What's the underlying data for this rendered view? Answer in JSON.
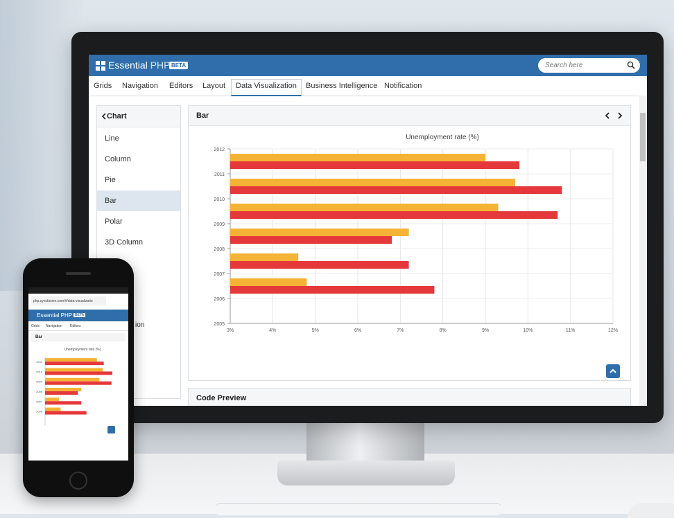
{
  "app": {
    "title_main": "Essential",
    "title_php": "PHP",
    "badge": "BETA"
  },
  "search": {
    "placeholder": "Search here"
  },
  "menu": {
    "items": [
      "Grids",
      "Navigation",
      "Editors",
      "Layout",
      "Data Visualization",
      "Business Intelligence",
      "Notification"
    ],
    "active": "Data Visualization"
  },
  "sidebar": {
    "header": "Chart",
    "items": [
      "Line",
      "Column",
      "Pie",
      "Bar",
      "Polar",
      "3D Column"
    ],
    "selected": "Bar",
    "peek_text": "ion"
  },
  "panel": {
    "title": "Bar",
    "code_preview_label": "Code Preview"
  },
  "colors": {
    "brand": "#2f6eab",
    "series_orange": "#f5b335",
    "series_red": "#e5383b"
  },
  "chart_data": {
    "type": "bar",
    "orientation": "horizontal",
    "title": "Unemployment rate (%)",
    "categories": [
      "2006",
      "2007",
      "2008",
      "2009",
      "2010",
      "2011"
    ],
    "y_ticks": [
      "2005",
      "2006",
      "2007",
      "2008",
      "2009",
      "2010",
      "2011",
      "2012"
    ],
    "x_ticks": [
      "3%",
      "4%",
      "5%",
      "6%",
      "7%",
      "8%",
      "9%",
      "10%",
      "11%",
      "12%"
    ],
    "xlim": [
      3,
      12
    ],
    "ylim": [
      2005,
      2012
    ],
    "grid": true,
    "series": [
      {
        "color": "#f5b335",
        "values": [
          4.8,
          4.6,
          7.2,
          9.3,
          9.7,
          9.0
        ]
      },
      {
        "color": "#e5383b",
        "values": [
          7.8,
          7.2,
          6.8,
          10.7,
          10.8,
          9.8
        ]
      }
    ]
  },
  "phone": {
    "url": "php.syncfusion.com/#/data-visualizatio",
    "title": "Essential PHP",
    "badge": "BETA",
    "menu": [
      "Grids",
      "Navigation",
      "Editors"
    ],
    "panel_title": "Bar",
    "chart_title": "Unemployment rate (%)",
    "y_ticks": [
      "2011",
      "2010",
      "2009",
      "2008",
      "2007",
      "2006"
    ]
  }
}
